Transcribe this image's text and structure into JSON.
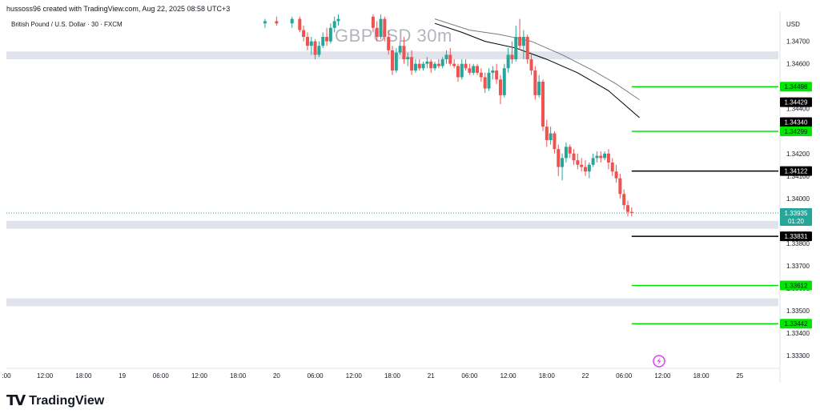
{
  "header": {
    "credit": "hussoss96 created with TradingView.com, Aug 22, 2025 08:58 UTC+3",
    "instrument": "British Pound / U.S. Dollar · 30 · FXCM",
    "watermark": "GBPUSD 30m",
    "currency": "USD"
  },
  "footer": {
    "brand_mark": "TV",
    "brand_name": "TradingView",
    "lightning_icon": "lightning-icon"
  },
  "colors": {
    "up": "#26a69a",
    "down": "#ef5350",
    "green_level": "#00e600",
    "black_level": "#000000",
    "zone": "#e0e3eb",
    "last_price": "#26a69a",
    "ma_dark": "#000000",
    "ma_light": "#787b86"
  },
  "chart_data": {
    "type": "candlestick",
    "symbol": "GBPUSD",
    "interval": "30m",
    "ylim": [
      1.3325,
      1.3482
    ],
    "y_ticks": [
      "1.34700",
      "1.34600",
      "1.34400",
      "1.34200",
      "1.34100",
      "1.34000",
      "1.33800",
      "1.33700",
      "1.33600",
      "1.33500",
      "1.33400",
      "1.33300"
    ],
    "x_ticks": [
      ":00",
      "12:00",
      "18:00",
      "19",
      "06:00",
      "12:00",
      "18:00",
      "20",
      "06:00",
      "12:00",
      "18:00",
      "21",
      "06:00",
      "12:00",
      "18:00",
      "22",
      "06:00",
      "12:00",
      "18:00",
      "25"
    ],
    "x_range": [
      0,
      100
    ],
    "x_tick_positions": [
      0,
      5,
      10,
      15,
      20,
      25,
      30,
      35,
      40,
      45,
      50,
      55,
      60,
      65,
      70,
      75,
      80,
      85,
      90,
      95
    ],
    "last_price": {
      "value": 1.33935,
      "label": "1.33935",
      "countdown": "01:20"
    },
    "levels": [
      {
        "value": 1.34498,
        "label": "1.34498",
        "color": "green",
        "x_start": 81
      },
      {
        "value": 1.34429,
        "label": "1.34429",
        "color": "black",
        "x_start": null
      },
      {
        "value": 1.3434,
        "label": "1.34340",
        "color": "black",
        "x_start": null
      },
      {
        "value": 1.34299,
        "label": "1.34299",
        "color": "green",
        "x_start": 81
      },
      {
        "value": 1.34122,
        "label": "1.34122",
        "color": "black",
        "x_start": 81
      },
      {
        "value": 1.33831,
        "label": "1.33831",
        "color": "black",
        "x_start": 81
      },
      {
        "value": 1.33612,
        "label": "1.33612",
        "color": "green",
        "x_start": 81
      },
      {
        "value": 1.33442,
        "label": "1.33442",
        "color": "green",
        "x_start": 81
      }
    ],
    "zones": [
      {
        "from": 1.3462,
        "to": 1.34655
      },
      {
        "from": 1.33865,
        "to": 1.339
      },
      {
        "from": 1.3352,
        "to": 1.33555
      }
    ],
    "moving_averages": [
      {
        "color": "light",
        "points": [
          [
            55.5,
            1.348
          ],
          [
            60,
            1.3475
          ],
          [
            64,
            1.3473
          ],
          [
            68,
            1.347
          ],
          [
            72,
            1.3464
          ],
          [
            76,
            1.3457
          ],
          [
            79,
            1.3451
          ],
          [
            82,
            1.3444
          ]
        ]
      },
      {
        "color": "dark",
        "points": [
          [
            55.5,
            1.3478
          ],
          [
            59,
            1.3474
          ],
          [
            62,
            1.347
          ],
          [
            66,
            1.3467
          ],
          [
            70,
            1.3462
          ],
          [
            74,
            1.3456
          ],
          [
            78,
            1.3448
          ],
          [
            82,
            1.3436
          ]
        ]
      }
    ],
    "candles": [
      [
        33.5,
        1.3478,
        1.348,
        1.3476,
        1.3479
      ],
      [
        35.0,
        1.3479,
        1.3481,
        1.3477,
        1.3478
      ],
      [
        37.0,
        1.3478,
        1.3481,
        1.3476,
        1.348
      ],
      [
        38.0,
        1.348,
        1.3481,
        1.3474,
        1.3475
      ],
      [
        38.5,
        1.3475,
        1.3477,
        1.347,
        1.3472
      ],
      [
        39.0,
        1.3472,
        1.3474,
        1.3466,
        1.3468
      ],
      [
        39.5,
        1.3468,
        1.3472,
        1.3464,
        1.347
      ],
      [
        40.0,
        1.347,
        1.3471,
        1.3462,
        1.3464
      ],
      [
        40.5,
        1.3464,
        1.347,
        1.3463,
        1.3468
      ],
      [
        41.0,
        1.3468,
        1.3474,
        1.3467,
        1.3472
      ],
      [
        41.5,
        1.3472,
        1.3476,
        1.3468,
        1.347
      ],
      [
        42.0,
        1.347,
        1.3478,
        1.3469,
        1.3476
      ],
      [
        42.5,
        1.3476,
        1.3481,
        1.3474,
        1.3479
      ],
      [
        43.0,
        1.3479,
        1.3482,
        1.3477,
        1.348
      ],
      [
        47.5,
        1.3481,
        1.3482,
        1.3474,
        1.3476
      ],
      [
        48.0,
        1.3476,
        1.3479,
        1.347,
        1.3472
      ],
      [
        48.5,
        1.3472,
        1.3482,
        1.3471,
        1.348
      ],
      [
        49.0,
        1.348,
        1.3481,
        1.347,
        1.3472
      ],
      [
        49.5,
        1.3472,
        1.3475,
        1.3464,
        1.3466
      ],
      [
        50.0,
        1.3466,
        1.3468,
        1.3455,
        1.3457
      ],
      [
        50.5,
        1.3457,
        1.3467,
        1.3456,
        1.3465
      ],
      [
        51.0,
        1.3465,
        1.347,
        1.3464,
        1.3468
      ],
      [
        51.5,
        1.3468,
        1.3472,
        1.346,
        1.3462
      ],
      [
        52.0,
        1.3462,
        1.3465,
        1.3459,
        1.3463
      ],
      [
        52.5,
        1.3463,
        1.3466,
        1.3455,
        1.3457
      ],
      [
        53.0,
        1.3457,
        1.3462,
        1.3456,
        1.346
      ],
      [
        53.5,
        1.346,
        1.3462,
        1.3457,
        1.3458
      ],
      [
        54.0,
        1.3458,
        1.3461,
        1.3457,
        1.346
      ],
      [
        54.5,
        1.346,
        1.3463,
        1.3458,
        1.3461
      ],
      [
        55.0,
        1.3461,
        1.3462,
        1.3456,
        1.3458
      ],
      [
        55.5,
        1.3458,
        1.3461,
        1.3457,
        1.346
      ],
      [
        56.0,
        1.346,
        1.3462,
        1.3458,
        1.3459
      ],
      [
        56.5,
        1.3459,
        1.3463,
        1.3458,
        1.3462
      ],
      [
        57.0,
        1.3462,
        1.3466,
        1.346,
        1.3464
      ],
      [
        57.5,
        1.3464,
        1.3467,
        1.3459,
        1.346
      ],
      [
        58.0,
        1.346,
        1.3462,
        1.3458,
        1.3459
      ],
      [
        58.5,
        1.3459,
        1.346,
        1.3452,
        1.3454
      ],
      [
        59.0,
        1.3454,
        1.3462,
        1.3453,
        1.346
      ],
      [
        59.5,
        1.346,
        1.3462,
        1.3457,
        1.3458
      ],
      [
        60.0,
        1.3458,
        1.346,
        1.3455,
        1.3456
      ],
      [
        60.5,
        1.3456,
        1.346,
        1.3455,
        1.3459
      ],
      [
        61.0,
        1.3459,
        1.346,
        1.3455,
        1.3456
      ],
      [
        61.5,
        1.3456,
        1.3458,
        1.3452,
        1.3454
      ],
      [
        62.0,
        1.3454,
        1.3456,
        1.3447,
        1.3449
      ],
      [
        62.5,
        1.3449,
        1.3458,
        1.3448,
        1.3456
      ],
      [
        63.0,
        1.3456,
        1.3459,
        1.3453,
        1.3457
      ],
      [
        63.5,
        1.3457,
        1.346,
        1.3451,
        1.3453
      ],
      [
        64.0,
        1.3453,
        1.3455,
        1.3442,
        1.3446
      ],
      [
        64.5,
        1.3446,
        1.346,
        1.3445,
        1.3458
      ],
      [
        65.0,
        1.3458,
        1.3467,
        1.3456,
        1.3464
      ],
      [
        65.5,
        1.3464,
        1.347,
        1.346,
        1.3462
      ],
      [
        66.0,
        1.3462,
        1.3477,
        1.3461,
        1.3472
      ],
      [
        66.5,
        1.3472,
        1.348,
        1.3466,
        1.3468
      ],
      [
        67.0,
        1.3468,
        1.3475,
        1.3462,
        1.3472
      ],
      [
        67.5,
        1.3472,
        1.3473,
        1.346,
        1.3462
      ],
      [
        68.0,
        1.3462,
        1.3465,
        1.3455,
        1.3457
      ],
      [
        68.5,
        1.3457,
        1.3459,
        1.3444,
        1.3446
      ],
      [
        69.0,
        1.3446,
        1.3455,
        1.3445,
        1.3452
      ],
      [
        69.5,
        1.3452,
        1.3453,
        1.343,
        1.3432
      ],
      [
        70.0,
        1.3432,
        1.3435,
        1.3423,
        1.3426
      ],
      [
        70.5,
        1.3426,
        1.3432,
        1.3424,
        1.3429
      ],
      [
        71.0,
        1.3429,
        1.343,
        1.342,
        1.3422
      ],
      [
        71.5,
        1.3422,
        1.3424,
        1.341,
        1.3414
      ],
      [
        72.0,
        1.3414,
        1.342,
        1.3408,
        1.3418
      ],
      [
        72.5,
        1.3418,
        1.3425,
        1.3416,
        1.3423
      ],
      [
        73.0,
        1.3423,
        1.3424,
        1.3418,
        1.342
      ],
      [
        73.5,
        1.342,
        1.3422,
        1.3415,
        1.3417
      ],
      [
        74.0,
        1.3417,
        1.342,
        1.3413,
        1.3415
      ],
      [
        74.5,
        1.3415,
        1.3418,
        1.3412,
        1.3414
      ],
      [
        75.0,
        1.3414,
        1.3417,
        1.341,
        1.3412
      ],
      [
        75.5,
        1.3412,
        1.3416,
        1.3409,
        1.3415
      ],
      [
        76.0,
        1.3415,
        1.342,
        1.3414,
        1.3418
      ],
      [
        76.5,
        1.3418,
        1.3421,
        1.3416,
        1.3419
      ],
      [
        77.0,
        1.3419,
        1.3421,
        1.3416,
        1.3418
      ],
      [
        77.5,
        1.3418,
        1.3421,
        1.3417,
        1.342
      ],
      [
        78.0,
        1.342,
        1.3422,
        1.3413,
        1.3416
      ],
      [
        78.5,
        1.3416,
        1.3418,
        1.341,
        1.3412
      ],
      [
        79.0,
        1.3412,
        1.3415,
        1.3407,
        1.3409
      ],
      [
        79.5,
        1.3409,
        1.3411,
        1.34,
        1.3402
      ],
      [
        80.0,
        1.3402,
        1.3404,
        1.3395,
        1.3397
      ],
      [
        80.5,
        1.3397,
        1.3399,
        1.3392,
        1.3394
      ],
      [
        81.0,
        1.3394,
        1.3396,
        1.3392,
        1.33935
      ]
    ]
  }
}
